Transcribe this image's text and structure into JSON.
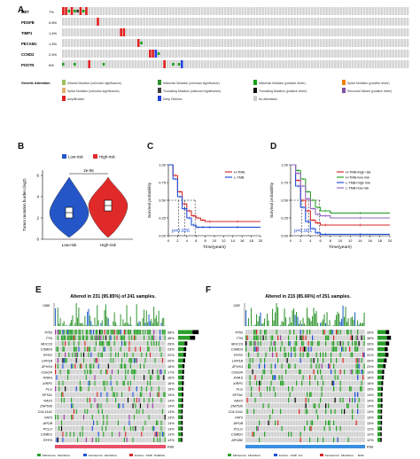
{
  "panels": {
    "A": {
      "letter": "A",
      "genes": [
        {
          "name": "MET",
          "pct": "7%"
        },
        {
          "name": "PDGFB",
          "pct": "0.8%"
        },
        {
          "name": "TIMP1",
          "pct": "1.4%"
        },
        {
          "name": "PECAM1",
          "pct": "1.4%"
        },
        {
          "name": "CCND2",
          "pct": "2.4%"
        },
        {
          "name": "POSTN",
          "pct": "6%"
        }
      ],
      "legend_title": "Genetic Alteration",
      "legend_items": [
        {
          "label": "Inframe Mutation (unknown significance)",
          "color": "#a0c060"
        },
        {
          "label": "Missense Mutation (unknown significance)",
          "color": "#2f8f2f"
        },
        {
          "label": "Missense Mutation (putative driver)",
          "color": "#1aa01a"
        },
        {
          "label": "Splice Mutation (putative driver)",
          "color": "#f08000"
        },
        {
          "label": "Splice Mutation (unknown significance)",
          "color": "#e0b070"
        },
        {
          "label": "Truncating Mutation (unknown significance)",
          "color": "#404040"
        },
        {
          "label": "Truncating Mutation (putative driver)",
          "color": "#101010"
        },
        {
          "label": "Structural Variant (putative driver)",
          "color": "#8050a0"
        },
        {
          "label": "Amplification",
          "color": "#e02020"
        },
        {
          "label": "Deep Deletion",
          "color": "#2040e0"
        },
        {
          "label": "No alterations",
          "color": "#cccccc"
        }
      ]
    },
    "B": {
      "letter": "B",
      "legend": [
        "Low-risk",
        "High-risk"
      ],
      "pvalue": "2e-06",
      "ylabel": "Tumor mutation burden (log2)",
      "xticks": [
        "Low-risk",
        "High-risk"
      ],
      "yticks": [
        "0",
        "2",
        "4",
        "6"
      ],
      "colors": {
        "low": "#2456c8",
        "high": "#e02a2a"
      }
    },
    "C": {
      "letter": "C",
      "legend": [
        "H-TMB",
        "L-TMB"
      ],
      "pvalue": "p=0.026",
      "ylabel": "Survival probability",
      "xlabel": "Time(years)",
      "xticks": [
        "0",
        "2",
        "4",
        "6",
        "8",
        "10",
        "12",
        "14",
        "16",
        "18",
        "20"
      ],
      "yticks": [
        "0.00",
        "0.25",
        "0.50",
        "0.75",
        "1.00"
      ],
      "colors": {
        "H": "#d62728",
        "L": "#1f4fd8"
      }
    },
    "D": {
      "letter": "D",
      "legend": [
        "H-TMB+high risk",
        "H-TMB+low risk",
        "L-TMB+high risk",
        "L-TMB+low risk"
      ],
      "pvalue": "p=0.001",
      "ylabel": "Survival probability",
      "xlabel": "Time(years)",
      "xticks": [
        "0",
        "2",
        "4",
        "6",
        "8",
        "10",
        "12",
        "14",
        "16",
        "18",
        "20"
      ],
      "yticks": [
        "0.00",
        "0.25",
        "0.50",
        "0.75",
        "1.00"
      ],
      "colors": [
        "#d62728",
        "#2ca02c",
        "#1f4fd8",
        "#9467bd"
      ]
    },
    "E": {
      "letter": "E",
      "title": "Altered in 231 (95.85%) of 241 samples.",
      "tmb_top": "1386",
      "genes": [
        {
          "name": "TP53",
          "pct": "58%"
        },
        {
          "name": "TTN",
          "pct": "48%"
        },
        {
          "name": "MUC16",
          "pct": "26%"
        },
        {
          "name": "CSMD3",
          "pct": "23%"
        },
        {
          "name": "RYR2",
          "pct": "22%"
        },
        {
          "name": "LRP1B",
          "pct": "20%"
        },
        {
          "name": "ZFHX4",
          "pct": "18%"
        },
        {
          "name": "USH2A",
          "pct": "17%"
        },
        {
          "name": "KRAS",
          "pct": "16%"
        },
        {
          "name": "XIRP2",
          "pct": "16%"
        },
        {
          "name": "FLG",
          "pct": "15%"
        },
        {
          "name": "SPTA1",
          "pct": "15%"
        },
        {
          "name": "NAV3",
          "pct": "14%"
        },
        {
          "name": "ZNF536",
          "pct": "14%"
        },
        {
          "name": "COL11A1",
          "pct": "13%"
        },
        {
          "name": "FAT3",
          "pct": "13%"
        },
        {
          "name": "APOB",
          "pct": "13%"
        },
        {
          "name": "PCLO",
          "pct": "13%"
        },
        {
          "name": "CSMD1",
          "pct": "13%"
        },
        {
          "name": "RYR3",
          "pct": "12%"
        }
      ],
      "risk_label": "Risk",
      "legend": [
        "Missense_Mutation",
        "Nonsense_Mutation",
        "Frame_Shift_Del",
        "Frame_Shift_Ins",
        "In_Frame_Del",
        "Multi_Hit"
      ],
      "risk_legend": [
        "High",
        "Low"
      ],
      "risk_color": "#e8506a"
    },
    "F": {
      "letter": "F",
      "title": "Altered in 215 (85.66%) of 251 samples.",
      "tmb_top": "1282",
      "genes": [
        {
          "name": "TP53",
          "pct": "33%"
        },
        {
          "name": "TTN",
          "pct": "38%"
        },
        {
          "name": "MUC16",
          "pct": "33%"
        },
        {
          "name": "CSMD3",
          "pct": "29%"
        },
        {
          "name": "RYR2",
          "pct": "31%"
        },
        {
          "name": "LRP1B",
          "pct": "26%"
        },
        {
          "name": "ZFHX4",
          "pct": "23%"
        },
        {
          "name": "USH2A",
          "pct": "19%"
        },
        {
          "name": "KRAS",
          "pct": "18%"
        },
        {
          "name": "XIRP2",
          "pct": "16%"
        },
        {
          "name": "FLG",
          "pct": "15%"
        },
        {
          "name": "SPTA1",
          "pct": "14%"
        },
        {
          "name": "NAV3",
          "pct": "14%"
        },
        {
          "name": "ZNF536",
          "pct": "14%"
        },
        {
          "name": "COL11A1",
          "pct": "13%"
        },
        {
          "name": "FAT3",
          "pct": "13%"
        },
        {
          "name": "APOB",
          "pct": "13%"
        },
        {
          "name": "PCLO",
          "pct": "12%"
        },
        {
          "name": "CSMD1",
          "pct": "12%"
        },
        {
          "name": "APOB2",
          "pct": "12%"
        }
      ],
      "risk_label": "Risk",
      "legend": [
        "Missense_Mutation",
        "Frame_Shift_Ins",
        "Nonsense_Mutation",
        "Translation_Start_Site",
        "Frame_Shift_Del",
        "Multi_Hit",
        "In_Frame_Del"
      ],
      "risk_legend": [
        "High",
        "Low"
      ],
      "risk_color": "#3a8ee0"
    }
  },
  "chart_data": [
    {
      "type": "heatmap",
      "title": "",
      "categories": [
        "MET",
        "PDGFB",
        "TIMP1",
        "PECAM1",
        "CCND2",
        "POSTN"
      ],
      "values": [
        7,
        0.8,
        1.4,
        1.4,
        2.4,
        6
      ]
    },
    {
      "type": "violin",
      "categories": [
        "Low-risk",
        "High-risk"
      ],
      "ylabel": "Tumor mutation burden (log2)",
      "ylim": [
        0,
        6
      ],
      "annotation": "2e-06"
    },
    {
      "type": "line",
      "xlabel": "Time(years)",
      "ylabel": "Survival probability",
      "xlim": [
        0,
        20
      ],
      "ylim": [
        0,
        1
      ],
      "series": [
        {
          "name": "H-TMB",
          "x": [
            0,
            1,
            2,
            3,
            4,
            5,
            6,
            7,
            8,
            10,
            20
          ],
          "y": [
            1,
            0.85,
            0.62,
            0.45,
            0.35,
            0.28,
            0.25,
            0.22,
            0.2,
            0.2,
            0.2
          ]
        },
        {
          "name": "L-TMB",
          "x": [
            0,
            1,
            2,
            3,
            4,
            5,
            6,
            7,
            8,
            10,
            20
          ],
          "y": [
            1,
            0.8,
            0.55,
            0.38,
            0.25,
            0.15,
            0.12,
            0.12,
            0.12,
            0.12,
            0.12
          ]
        }
      ],
      "annotation": "p=0.026"
    },
    {
      "type": "line",
      "xlabel": "Time(years)",
      "ylabel": "Survival probability",
      "xlim": [
        0,
        20
      ],
      "ylim": [
        0,
        1
      ],
      "series": [
        {
          "name": "H-TMB+high risk",
          "x": [
            0,
            1,
            2,
            3,
            4,
            5,
            6,
            8,
            20
          ],
          "y": [
            1,
            0.78,
            0.5,
            0.35,
            0.22,
            0.18,
            0.15,
            0.15,
            0.15
          ]
        },
        {
          "name": "H-TMB+low risk",
          "x": [
            0,
            1,
            2,
            3,
            4,
            5,
            6,
            8,
            20
          ],
          "y": [
            1,
            0.92,
            0.8,
            0.62,
            0.5,
            0.4,
            0.35,
            0.32,
            0.32
          ]
        },
        {
          "name": "L-TMB+high risk",
          "x": [
            0,
            1,
            2,
            3,
            4,
            5,
            6,
            8,
            20
          ],
          "y": [
            1,
            0.7,
            0.4,
            0.2,
            0.1,
            0.04,
            0.02,
            0.02,
            0.02
          ]
        },
        {
          "name": "L-TMB+low risk",
          "x": [
            0,
            1,
            2,
            3,
            4,
            5,
            6,
            8,
            20
          ],
          "y": [
            1,
            0.88,
            0.7,
            0.52,
            0.38,
            0.3,
            0.28,
            0.25,
            0.25
          ]
        }
      ],
      "annotation": "p=0.001"
    },
    {
      "type": "heatmap",
      "title": "Altered in 231 (95.85%) of 241 samples.",
      "categories": [
        "TP53",
        "TTN",
        "MUC16",
        "CSMD3",
        "RYR2",
        "LRP1B",
        "ZFHX4",
        "USH2A",
        "KRAS",
        "XIRP2",
        "FLG",
        "SPTA1",
        "NAV3",
        "ZNF536",
        "COL11A1",
        "FAT3",
        "APOB",
        "PCLO",
        "CSMD1",
        "RYR3"
      ],
      "values": [
        58,
        48,
        26,
        23,
        22,
        20,
        18,
        17,
        16,
        16,
        15,
        15,
        14,
        14,
        13,
        13,
        13,
        13,
        13,
        12
      ]
    },
    {
      "type": "heatmap",
      "title": "Altered in 215 (85.66%) of 251 samples.",
      "categories": [
        "TP53",
        "TTN",
        "MUC16",
        "CSMD3",
        "RYR2",
        "LRP1B",
        "ZFHX4",
        "USH2A",
        "KRAS",
        "XIRP2",
        "FLG",
        "SPTA1",
        "NAV3",
        "ZNF536",
        "COL11A1",
        "FAT3",
        "APOB",
        "PCLO",
        "CSMD1",
        "APOB2"
      ],
      "values": [
        33,
        38,
        33,
        29,
        31,
        26,
        23,
        19,
        18,
        16,
        15,
        14,
        14,
        14,
        13,
        13,
        13,
        12,
        12,
        12
      ]
    }
  ]
}
